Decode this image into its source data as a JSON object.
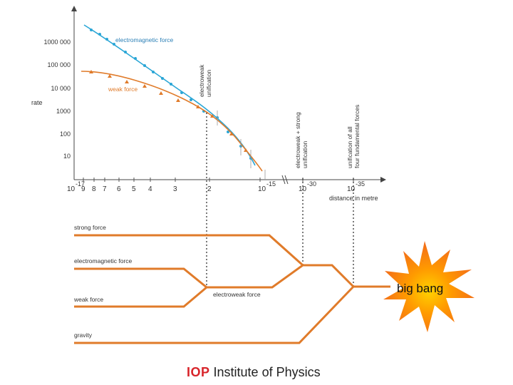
{
  "chart": {
    "y_axis_label": "rate",
    "y_ticks": [
      "1000 000",
      "100 000",
      "10 000",
      "1000",
      "100",
      "10"
    ],
    "x_axis_label": "distance in metre",
    "x_ticks": [
      "10",
      "9",
      "8",
      "7",
      "6",
      "5",
      "4",
      "3",
      "2",
      "10",
      "10",
      "10"
    ],
    "x_tick_exponents": [
      "-17",
      "-15",
      "-30",
      "-35"
    ],
    "series": [
      {
        "name": "electromagnetic force",
        "color": "#2aa6d6"
      },
      {
        "name": "weak force",
        "color": "#e07b2a"
      }
    ],
    "annotations": [
      {
        "line1": "electroweak",
        "line2": "unification"
      },
      {
        "line1": "electroweak + strong",
        "line2": "unification"
      },
      {
        "line1": "unification of all",
        "line2": "four fundamental forces"
      }
    ]
  },
  "diagram": {
    "line_color": "#e07b2a",
    "forces": [
      "strong force",
      "electromagnetic force",
      "weak force",
      "gravity"
    ],
    "merged": "electroweak force",
    "endpoint": "big bang"
  },
  "footer": {
    "brand": "IOP",
    "text": "Institute of Physics"
  }
}
